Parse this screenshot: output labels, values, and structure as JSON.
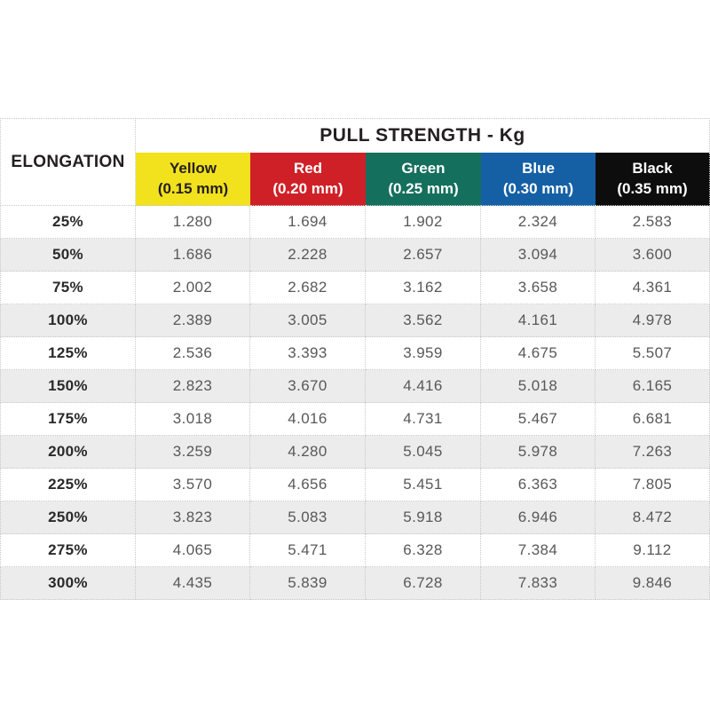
{
  "chart_data": {
    "type": "table",
    "title": "PULL STRENGTH - Kg",
    "row_header": "ELONGATION",
    "columns": [
      {
        "name": "Yellow",
        "thickness": "(0.15 mm)",
        "color": "#f2e11d",
        "text_color": "#231f20"
      },
      {
        "name": "Red",
        "thickness": "(0.20 mm)",
        "color": "#d02027",
        "text_color": "#ffffff"
      },
      {
        "name": "Green",
        "thickness": "(0.25 mm)",
        "color": "#156f5d",
        "text_color": "#ffffff"
      },
      {
        "name": "Blue",
        "thickness": "(0.30 mm)",
        "color": "#1560a5",
        "text_color": "#ffffff"
      },
      {
        "name": "Black",
        "thickness": "(0.35 mm)",
        "color": "#0d0d0d",
        "text_color": "#ffffff"
      }
    ],
    "rows": [
      {
        "elongation": "25%",
        "values": [
          1.28,
          1.694,
          1.902,
          2.324,
          2.583
        ]
      },
      {
        "elongation": "50%",
        "values": [
          1.686,
          2.228,
          2.657,
          3.094,
          3.6
        ]
      },
      {
        "elongation": "75%",
        "values": [
          2.002,
          2.682,
          3.162,
          3.658,
          4.361
        ]
      },
      {
        "elongation": "100%",
        "values": [
          2.389,
          3.005,
          3.562,
          4.161,
          4.978
        ]
      },
      {
        "elongation": "125%",
        "values": [
          2.536,
          3.393,
          3.959,
          4.675,
          5.507
        ]
      },
      {
        "elongation": "150%",
        "values": [
          2.823,
          3.67,
          4.416,
          5.018,
          6.165
        ]
      },
      {
        "elongation": "175%",
        "values": [
          3.018,
          4.016,
          4.731,
          5.467,
          6.681
        ]
      },
      {
        "elongation": "200%",
        "values": [
          3.259,
          4.28,
          5.045,
          5.978,
          7.263
        ]
      },
      {
        "elongation": "225%",
        "values": [
          3.57,
          4.656,
          5.451,
          6.363,
          7.805
        ]
      },
      {
        "elongation": "250%",
        "values": [
          3.823,
          5.083,
          5.918,
          6.946,
          8.472
        ]
      },
      {
        "elongation": "275%",
        "values": [
          4.065,
          5.471,
          6.328,
          7.384,
          9.112
        ]
      },
      {
        "elongation": "300%",
        "values": [
          4.435,
          5.839,
          6.728,
          7.833,
          9.846
        ]
      }
    ],
    "layout": {
      "stripe_color": "#ececec",
      "border_color": "#c8c8c8",
      "value_text_color": "#58585a",
      "decimals": 3
    }
  }
}
